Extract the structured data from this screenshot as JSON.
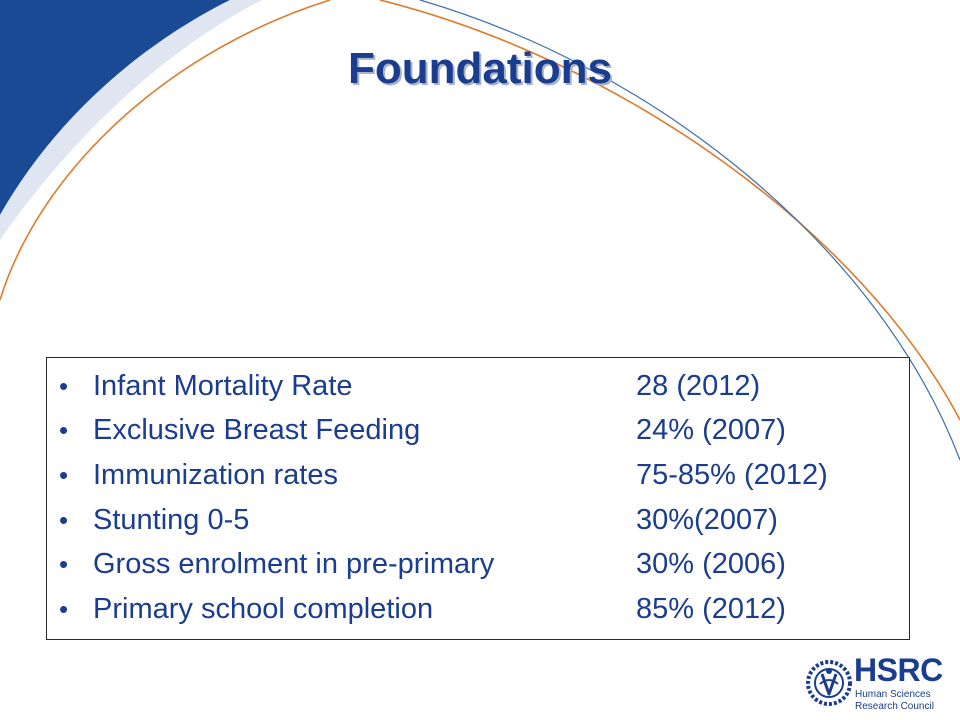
{
  "slide": {
    "title": "Foundations",
    "colors": {
      "title": "#1a3d8f",
      "text": "#1a3d8f",
      "corner_band": "#1a4a94",
      "curve_orange": "#e07b2b",
      "curve_blue": "#3a6fb0"
    }
  },
  "indicators": [
    {
      "bullet": "•",
      "label": "Infant Mortality Rate",
      "value": "28 (2012)"
    },
    {
      "bullet": "•",
      "label": "Exclusive Breast Feeding",
      "value": "24% (2007)"
    },
    {
      "bullet": "•",
      "label": "Immunization rates",
      "value": "75-85% (2012)"
    },
    {
      "bullet": "•",
      "label": "Stunting 0-5",
      "value": "30%(2007)"
    },
    {
      "bullet": "•",
      "label": "Gross enrolment in pre-primary",
      "value": "30% (2006)"
    },
    {
      "bullet": "•",
      "label": "Primary school completion",
      "value": "85% (2012)"
    }
  ],
  "logo": {
    "name": "HSRC",
    "line1": "Human Sciences",
    "line2": "Research Council",
    "icon": "hsrc-emblem-icon"
  }
}
